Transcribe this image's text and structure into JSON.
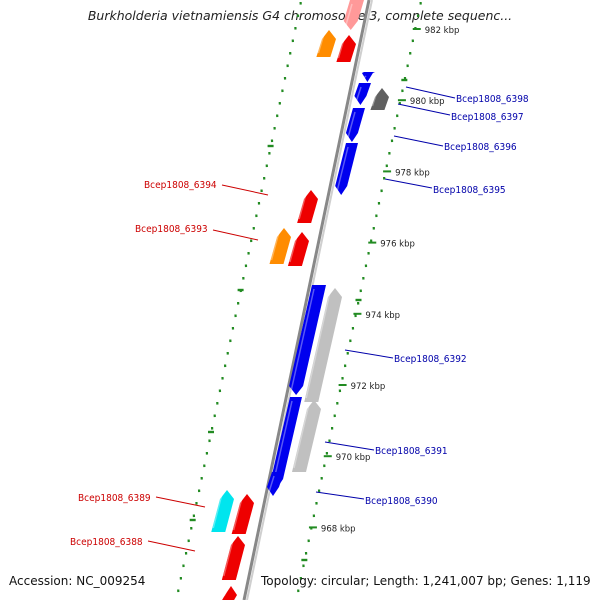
{
  "title": "Burkholderia vietnamiensis G4 chromosome 3, complete sequenc...",
  "footer": {
    "accession": "Accession: NC_009254",
    "topology": "Topology: circular; Length: 1,241,007 bp; Genes: 1,119"
  },
  "colors": {
    "forward_strand": "#0000ee",
    "reverse_strand": "#ee0000",
    "label_forward": "#0000aa",
    "label_reverse": "#cc0000",
    "orange_gene": "#ff8c00",
    "cyan_gene": "#00e5ee",
    "grey_gene": "#c0c0c0",
    "dark_grey_gene": "#606060",
    "backbone": "#888888",
    "gc_dots": "#228b22"
  },
  "scale_ticks": [
    {
      "label": "982 kbp",
      "kbp": 982
    },
    {
      "label": "980 kbp",
      "kbp": 980
    },
    {
      "label": "978 kbp",
      "kbp": 978
    },
    {
      "label": "976 kbp",
      "kbp": 976
    },
    {
      "label": "974 kbp",
      "kbp": 974
    },
    {
      "label": "972 kbp",
      "kbp": 972
    },
    {
      "label": "970 kbp",
      "kbp": 970
    },
    {
      "label": "968 kbp",
      "kbp": 968
    }
  ],
  "gene_labels": [
    {
      "name": "Bcep1808_6398",
      "strand": "forward"
    },
    {
      "name": "Bcep1808_6397",
      "strand": "forward"
    },
    {
      "name": "Bcep1808_6396",
      "strand": "forward"
    },
    {
      "name": "Bcep1808_6395",
      "strand": "forward"
    },
    {
      "name": "Bcep1808_6394",
      "strand": "reverse"
    },
    {
      "name": "Bcep1808_6393",
      "strand": "reverse"
    },
    {
      "name": "Bcep1808_6392",
      "strand": "forward"
    },
    {
      "name": "Bcep1808_6391",
      "strand": "forward"
    },
    {
      "name": "Bcep1808_6390",
      "strand": "forward"
    },
    {
      "name": "Bcep1808_6389",
      "strand": "reverse"
    },
    {
      "name": "Bcep1808_6388",
      "strand": "reverse"
    }
  ]
}
